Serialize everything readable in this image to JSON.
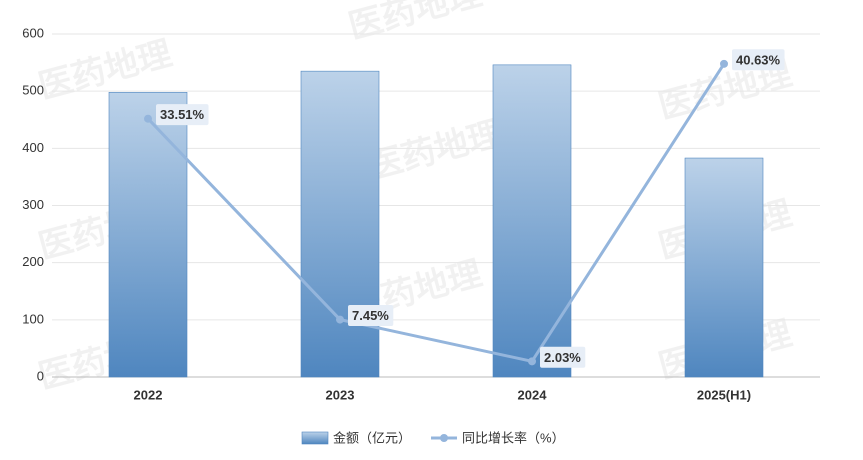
{
  "chart_data": {
    "type": "bar-line",
    "watermark": "医药地理",
    "categories": [
      "2022",
      "2023",
      "2024",
      "2025(H1)"
    ],
    "series": [
      {
        "name": "金额（亿元）",
        "type": "bar",
        "color": "#4f86bf",
        "values": [
          498,
          535,
          546,
          383
        ]
      },
      {
        "name": "同比增长率（%）",
        "type": "line",
        "axis": "y2",
        "color": "#94b5dc",
        "values": [
          33.51,
          7.45,
          2.03,
          40.63
        ],
        "value_labels": [
          "33.51%",
          "7.45%",
          "2.03%",
          "40.63%"
        ]
      }
    ],
    "ylim": [
      0,
      600
    ],
    "yticks": [
      0,
      100,
      200,
      300,
      400,
      500,
      600
    ],
    "y2lim": [
      0,
      44.5
    ],
    "grid": true
  }
}
